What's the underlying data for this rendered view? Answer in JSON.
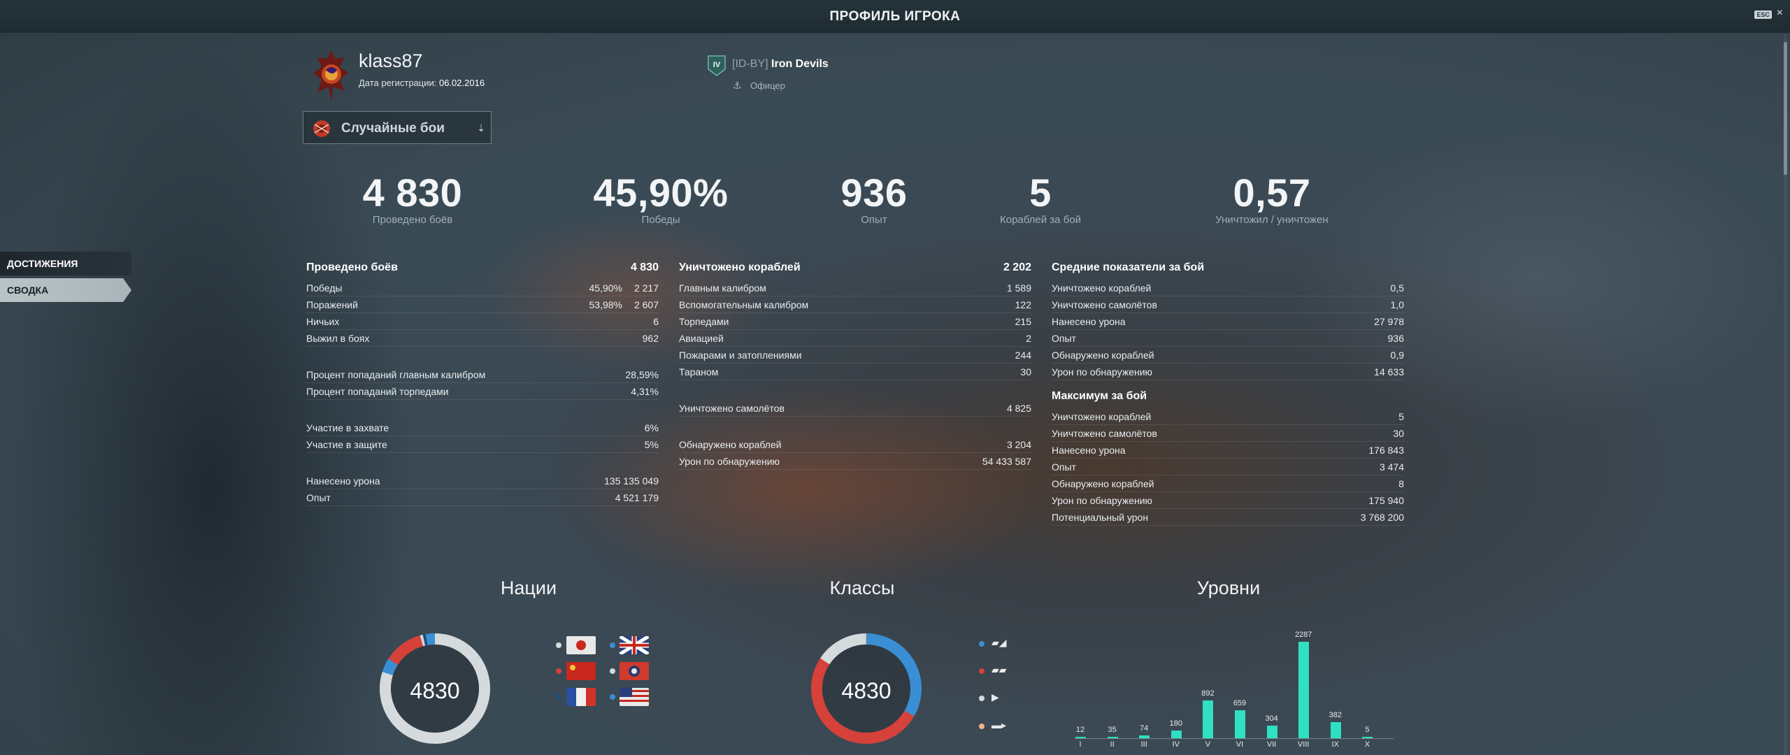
{
  "window": {
    "title": "ПРОФИЛЬ ИГРОКА",
    "esc_label": "ESC",
    "close": "×"
  },
  "player": {
    "name": "klass87",
    "reg_label": "Дата регистрации:",
    "reg_date": "06.02.2016"
  },
  "clan": {
    "level": "IV",
    "tag": "[ID-BY]",
    "name": "Iron Devils",
    "role": "Офицер"
  },
  "mode_select": {
    "value": "Случайные бои"
  },
  "sidebar": {
    "items": [
      {
        "label": "ДОСТИЖЕНИЯ"
      },
      {
        "label": "СВОДКА"
      }
    ]
  },
  "summary": [
    {
      "value": "4 830",
      "label": "Проведено боёв"
    },
    {
      "value": "45,90%",
      "label": "Победы"
    },
    {
      "value": "936",
      "label": "Опыт"
    },
    {
      "value": "5",
      "label": "Кораблей за бой"
    },
    {
      "value": "0,57",
      "label": "Уничтожил / уничтожен"
    }
  ],
  "col1": {
    "title": "Проведено боёв",
    "total": "4 830",
    "rows": [
      {
        "k": "Победы",
        "p": "45,90%",
        "v": "2 217"
      },
      {
        "k": "Поражений",
        "p": "53,98%",
        "v": "2 607"
      },
      {
        "k": "Ничьих",
        "v": "6"
      },
      {
        "k": "Выжил в боях",
        "v": "962"
      }
    ],
    "rows2": [
      {
        "k": "Процент попаданий главным калибром",
        "v": "28,59%"
      },
      {
        "k": "Процент попаданий торпедами",
        "v": "4,31%"
      }
    ],
    "rows3": [
      {
        "k": "Участие в захвате",
        "v": "6%"
      },
      {
        "k": "Участие в защите",
        "v": "5%"
      }
    ],
    "rows4": [
      {
        "k": "Нанесено урона",
        "v": "135 135 049"
      },
      {
        "k": "Опыт",
        "v": "4 521 179"
      }
    ]
  },
  "col2": {
    "title": "Уничтожено кораблей",
    "total": "2 202",
    "rows": [
      {
        "k": "Главным калибром",
        "v": "1 589"
      },
      {
        "k": "Вспомогательным калибром",
        "v": "122"
      },
      {
        "k": "Торпедами",
        "v": "215"
      },
      {
        "k": "Авиацией",
        "v": "2"
      },
      {
        "k": "Пожарами и затоплениями",
        "v": "244"
      },
      {
        "k": "Тараном",
        "v": "30"
      }
    ],
    "rows2": [
      {
        "k": "Уничтожено самолётов",
        "v": "4 825"
      }
    ],
    "rows3": [
      {
        "k": "Обнаружено кораблей",
        "v": "3 204"
      },
      {
        "k": "Урон по обнаружению",
        "v": "54 433 587"
      }
    ]
  },
  "col3": {
    "title": "Средние показатели за бой",
    "rows": [
      {
        "k": "Уничтожено кораблей",
        "v": "0,5"
      },
      {
        "k": "Уничтожено самолётов",
        "v": "1,0"
      },
      {
        "k": "Нанесено урона",
        "v": "27 978"
      },
      {
        "k": "Опыт",
        "v": "936"
      },
      {
        "k": "Обнаружено кораблей",
        "v": "0,9"
      },
      {
        "k": "Урон по обнаружению",
        "v": "14 633"
      }
    ],
    "title2": "Максимум за бой",
    "rows2": [
      {
        "k": "Уничтожено кораблей",
        "v": "5"
      },
      {
        "k": "Уничтожено самолётов",
        "v": "30"
      },
      {
        "k": "Нанесено урона",
        "v": "176 843"
      },
      {
        "k": "Опыт",
        "v": "3 474"
      },
      {
        "k": "Обнаружено кораблей",
        "v": "8"
      },
      {
        "k": "Урон по обнаружению",
        "v": "175 940"
      },
      {
        "k": "Потенциальный урон",
        "v": "3 768 200"
      }
    ]
  },
  "charts": {
    "nations_title": "Нации",
    "classes_title": "Классы",
    "levels_title": "Уровни",
    "nations_total": "4830",
    "classes_total": "4830"
  },
  "colors": {
    "accent": "#2fe0c2",
    "blue": "#3a8fd4",
    "red": "#d6413a",
    "gray": "#d5dadc",
    "orange": "#f0b48a"
  },
  "chart_data": [
    {
      "type": "pie",
      "title": "Нации",
      "center_label": "4830",
      "categories": [
        "Япония",
        "Великобритания",
        "Китай",
        "Пан-Азия",
        "Франция",
        "США"
      ],
      "values": [
        3860,
        200,
        560,
        40,
        40,
        130
      ],
      "colors": [
        "#d5dadc",
        "#3a8fd4",
        "#d6413a",
        "#d5dadc",
        "#1f4c7a",
        "#3a8fd4"
      ]
    },
    {
      "type": "pie",
      "title": "Классы",
      "center_label": "4830",
      "categories": [
        "Эсминцы",
        "Крейсеры",
        "Линкоры",
        "Авианосцы"
      ],
      "values": [
        1610,
        2460,
        750,
        10
      ],
      "colors": [
        "#3a8fd4",
        "#d6413a",
        "#d5dadc",
        "#f0b48a"
      ]
    },
    {
      "type": "bar",
      "title": "Уровни",
      "categories": [
        "I",
        "II",
        "III",
        "IV",
        "V",
        "VI",
        "VII",
        "VIII",
        "IX",
        "X"
      ],
      "values": [
        12,
        35,
        74,
        180,
        892,
        659,
        304,
        2287,
        382,
        5
      ],
      "color": "#2fe0c2"
    }
  ]
}
